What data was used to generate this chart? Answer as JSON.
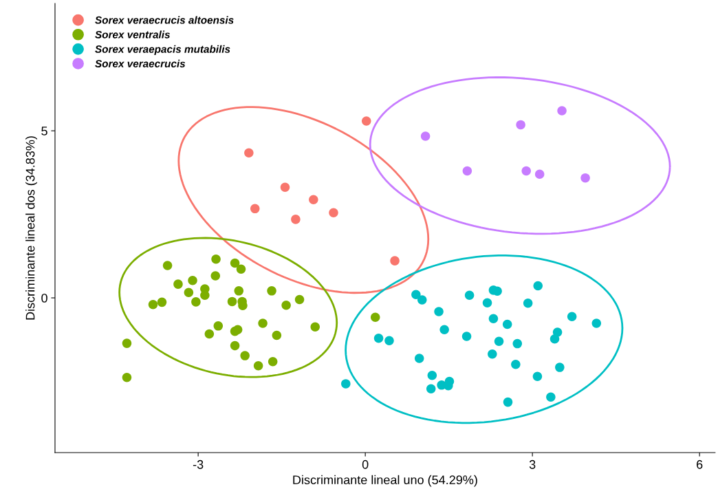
{
  "chart_data": {
    "type": "scatter",
    "xlabel": "Discriminante lineal uno (54.29%)",
    "ylabel": "Discriminante lineal dos (34.83%)",
    "xlim": [
      -5.57,
      6.28
    ],
    "ylim": [
      -4.63,
      8.81
    ],
    "xticks": [
      -3,
      0,
      3,
      6
    ],
    "yticks": [
      0,
      5
    ],
    "grid": false,
    "legend": "top left",
    "marker": "circle",
    "series": [
      {
        "name": "Sorex veraecrucis altoensis",
        "color": "#f8766d",
        "x": [
          -2.09,
          -1.44,
          -1.98,
          -0.93,
          -1.25,
          -0.57,
          0.02,
          0.53
        ],
        "values": [
          4.34,
          3.31,
          2.67,
          2.94,
          2.35,
          2.55,
          5.29,
          1.11
        ]
      },
      {
        "name": "Sorex ventralis",
        "color": "#7cae00",
        "x": [
          -3.55,
          -2.68,
          -2.34,
          -2.23,
          -2.69,
          -3.36,
          -3.1,
          -3.17,
          -2.88,
          -2.88,
          -3.04,
          -3.81,
          -3.65,
          -2.27,
          -2.39,
          -2.21,
          -2.2,
          -1.68,
          -1.42,
          -1.18,
          -0.9,
          -1.84,
          -1.59,
          -2.64,
          -2.8,
          -2.34,
          -2.29,
          -2.34,
          -2.16,
          -1.92,
          -1.66,
          -4.28,
          -4.28,
          0.18
        ],
        "values": [
          0.97,
          1.16,
          1.04,
          0.86,
          0.66,
          0.41,
          0.52,
          0.16,
          0.27,
          0.08,
          -0.12,
          -0.2,
          -0.13,
          0.21,
          -0.11,
          -0.11,
          -0.23,
          0.21,
          -0.22,
          -0.05,
          -0.87,
          -0.76,
          -1.12,
          -0.84,
          -1.08,
          -1.0,
          -0.95,
          -1.43,
          -1.73,
          -2.03,
          -1.91,
          -1.36,
          -2.38,
          -0.58
        ]
      },
      {
        "name": "Sorex veraepacis mutabilis",
        "color": "#00bfc4",
        "x": [
          0.91,
          1.02,
          1.87,
          2.3,
          2.37,
          2.19,
          3.1,
          2.92,
          1.32,
          1.42,
          1.82,
          2.3,
          2.55,
          2.4,
          2.73,
          2.28,
          2.7,
          3.71,
          4.15,
          3.45,
          3.4,
          3.49,
          3.09,
          3.33,
          2.56,
          0.24,
          0.43,
          0.97,
          1.2,
          1.18,
          1.37,
          1.51,
          1.49,
          -0.35
        ],
        "values": [
          0.1,
          -0.06,
          0.08,
          0.23,
          0.2,
          -0.15,
          0.36,
          -0.16,
          -0.41,
          -0.95,
          -1.15,
          -0.62,
          -0.79,
          -1.3,
          -1.37,
          -1.68,
          -1.99,
          -0.56,
          -0.76,
          -1.03,
          -1.23,
          -2.08,
          -2.35,
          -2.97,
          -3.12,
          -1.21,
          -1.28,
          -1.81,
          -2.32,
          -2.72,
          -2.61,
          -2.5,
          -2.63,
          -2.57
        ]
      },
      {
        "name": "Sorex veraecrucis",
        "color": "#c77cff",
        "x": [
          1.08,
          2.79,
          3.53,
          1.83,
          2.89,
          3.13,
          3.95
        ],
        "values": [
          4.84,
          5.18,
          5.6,
          3.8,
          3.8,
          3.7,
          3.59
        ]
      }
    ]
  }
}
